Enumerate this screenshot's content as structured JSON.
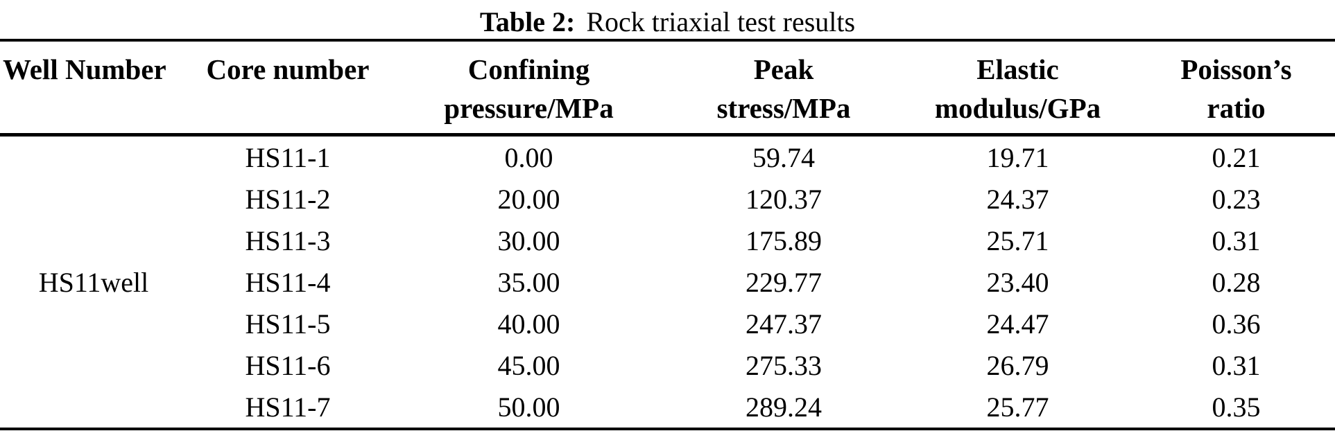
{
  "title": {
    "label": "Table 2:",
    "text": "Rock triaxial test results"
  },
  "table": {
    "columns": [
      {
        "line1": "Well Number",
        "line2": ""
      },
      {
        "line1": "Core number",
        "line2": ""
      },
      {
        "line1": "Confining",
        "line2": "pressure/MPa"
      },
      {
        "line1": "Peak",
        "line2": "stress/MPa"
      },
      {
        "line1": "Elastic",
        "line2": "modulus/GPa"
      },
      {
        "line1": "Poisson’s",
        "line2": "ratio"
      }
    ],
    "well_number": "HS11well",
    "rows": [
      {
        "core": "HS11-1",
        "confining_pressure_mpa": "0.00",
        "peak_stress_mpa": "59.74",
        "elastic_modulus_gpa": "19.71",
        "poissons_ratio": "0.21"
      },
      {
        "core": "HS11-2",
        "confining_pressure_mpa": "20.00",
        "peak_stress_mpa": "120.37",
        "elastic_modulus_gpa": "24.37",
        "poissons_ratio": "0.23"
      },
      {
        "core": "HS11-3",
        "confining_pressure_mpa": "30.00",
        "peak_stress_mpa": "175.89",
        "elastic_modulus_gpa": "25.71",
        "poissons_ratio": "0.31"
      },
      {
        "core": "HS11-4",
        "confining_pressure_mpa": "35.00",
        "peak_stress_mpa": "229.77",
        "elastic_modulus_gpa": "23.40",
        "poissons_ratio": "0.28"
      },
      {
        "core": "HS11-5",
        "confining_pressure_mpa": "40.00",
        "peak_stress_mpa": "247.37",
        "elastic_modulus_gpa": "24.47",
        "poissons_ratio": "0.36"
      },
      {
        "core": "HS11-6",
        "confining_pressure_mpa": "45.00",
        "peak_stress_mpa": "275.33",
        "elastic_modulus_gpa": "26.79",
        "poissons_ratio": "0.31"
      },
      {
        "core": "HS11-7",
        "confining_pressure_mpa": "50.00",
        "peak_stress_mpa": "289.24",
        "elastic_modulus_gpa": "25.77",
        "poissons_ratio": "0.35"
      }
    ]
  },
  "chart_data": {
    "type": "table",
    "title": "Table 2: Rock triaxial test results",
    "columns": [
      "Well Number",
      "Core number",
      "Confining pressure/MPa",
      "Peak stress/MPa",
      "Elastic modulus/GPa",
      "Poisson's ratio"
    ],
    "rows": [
      [
        "HS11well",
        "HS11-1",
        0.0,
        59.74,
        19.71,
        0.21
      ],
      [
        "HS11well",
        "HS11-2",
        20.0,
        120.37,
        24.37,
        0.23
      ],
      [
        "HS11well",
        "HS11-3",
        30.0,
        175.89,
        25.71,
        0.31
      ],
      [
        "HS11well",
        "HS11-4",
        35.0,
        229.77,
        23.4,
        0.28
      ],
      [
        "HS11well",
        "HS11-5",
        40.0,
        247.37,
        24.47,
        0.36
      ],
      [
        "HS11well",
        "HS11-6",
        45.0,
        275.33,
        26.79,
        0.31
      ],
      [
        "HS11well",
        "HS11-7",
        50.0,
        289.24,
        25.77,
        0.35
      ]
    ]
  }
}
